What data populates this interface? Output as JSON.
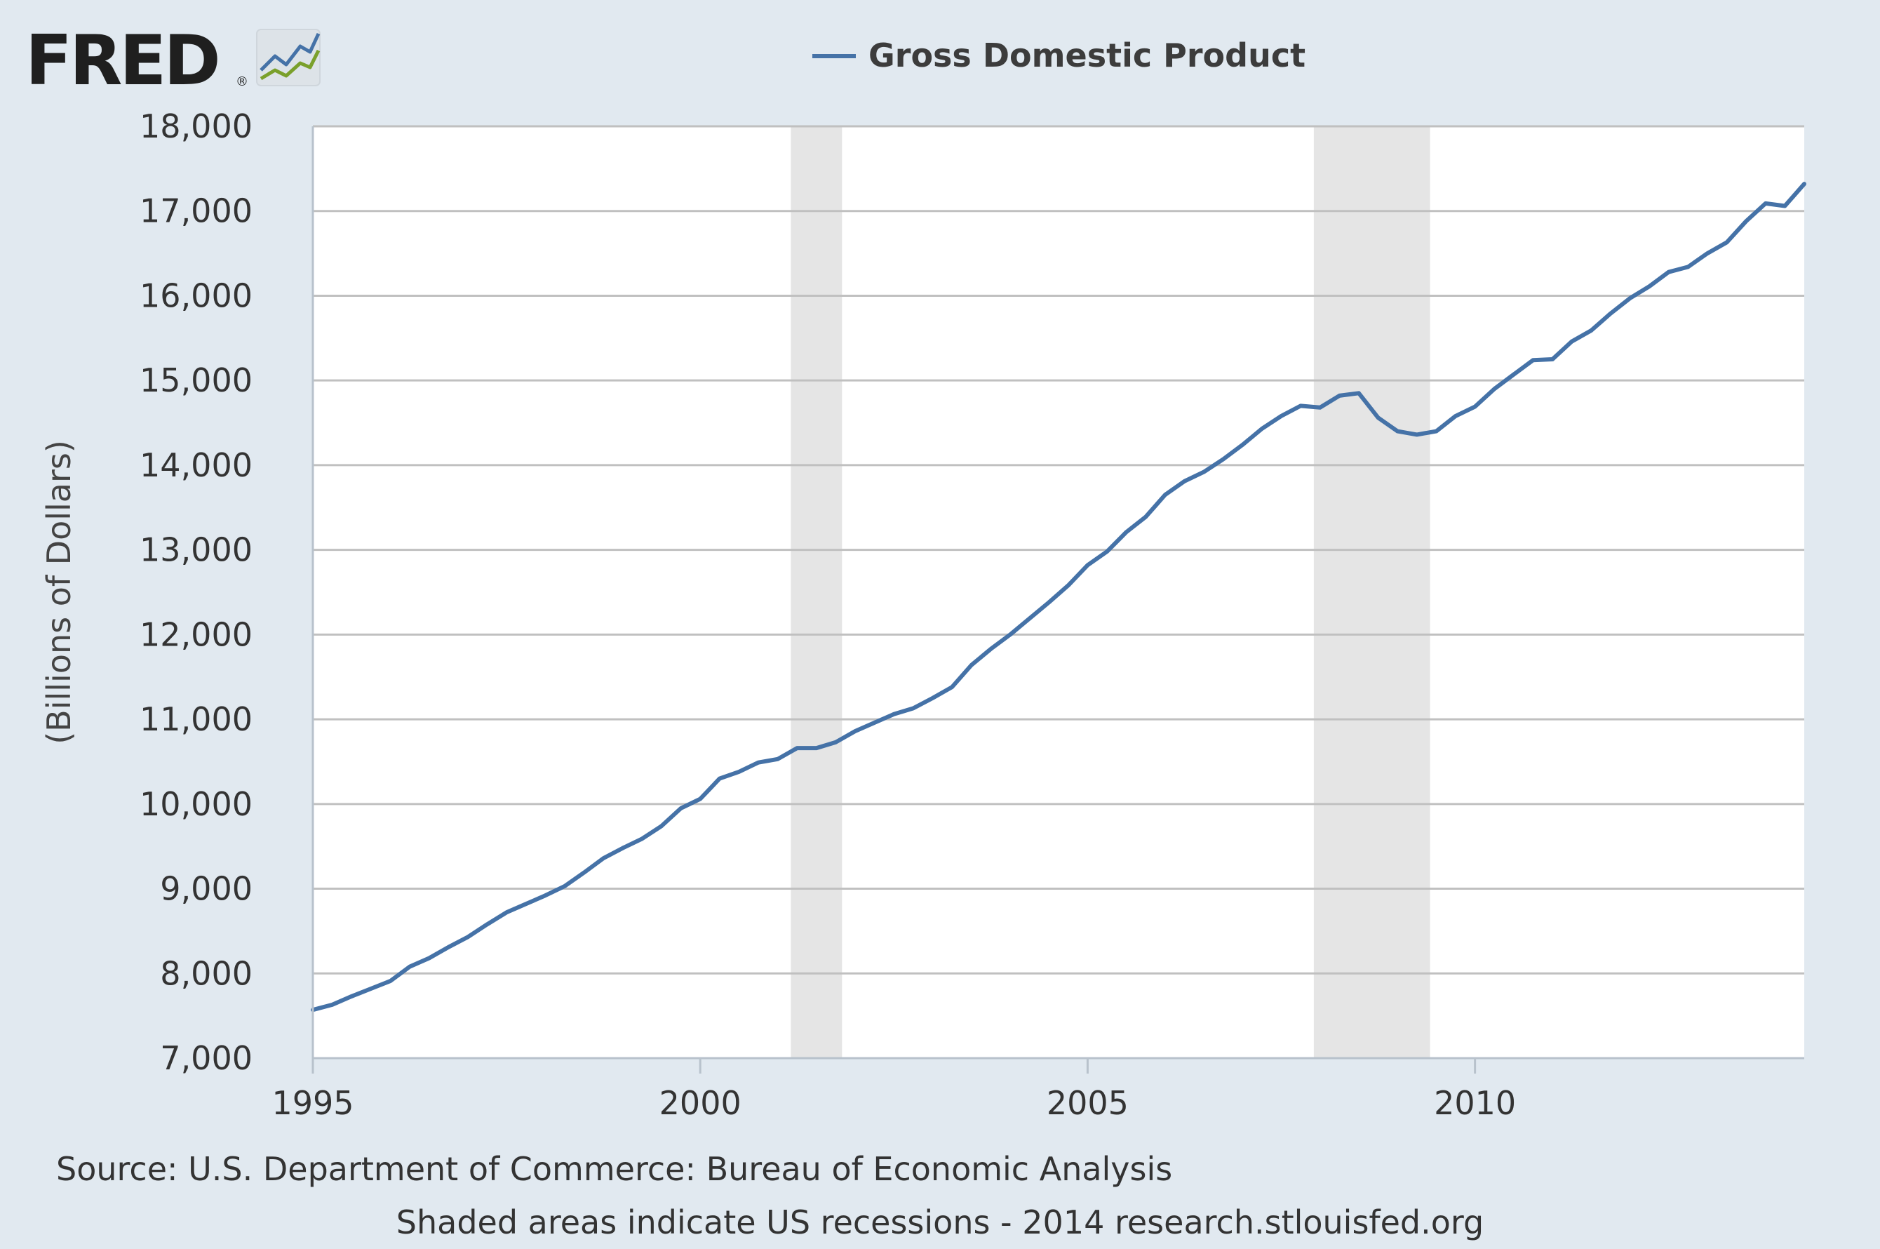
{
  "logo": {
    "text": "FRED",
    "registered": "®"
  },
  "colors": {
    "background": "#e1e9f0",
    "plot_background": "#ffffff",
    "series_line": "#4572a7",
    "recession_band": "#e5e5e5",
    "gridline": "#c0c0c0"
  },
  "footer": {
    "source": "Source: U.S. Department of Commerce: Bureau of Economic Analysis",
    "note": "Shaded areas indicate US recessions - 2014 research.stlouisfed.org"
  },
  "chart_data": {
    "type": "line",
    "title": "",
    "xlabel": "",
    "ylabel": "(Billions of Dollars)",
    "xlim": [
      1995.0,
      2014.25
    ],
    "ylim": [
      7000,
      18000
    ],
    "x_ticks": [
      1995,
      2000,
      2005,
      2010
    ],
    "x_tick_labels": [
      "1995",
      "2000",
      "2005",
      "2010"
    ],
    "y_ticks": [
      7000,
      8000,
      9000,
      10000,
      11000,
      12000,
      13000,
      14000,
      15000,
      16000,
      17000,
      18000
    ],
    "y_tick_labels": [
      "7,000",
      "8,000",
      "9,000",
      "10,000",
      "11,000",
      "12,000",
      "13,000",
      "14,000",
      "15,000",
      "16,000",
      "17,000",
      "18,000"
    ],
    "grid": true,
    "legend": "top-center",
    "recessions": [
      {
        "start": 2001.17,
        "end": 2001.83
      },
      {
        "start": 2007.92,
        "end": 2009.42
      }
    ],
    "series": [
      {
        "name": "Gross Domestic Product",
        "x": [
          1995.0,
          1995.25,
          1995.5,
          1995.75,
          1996.0,
          1996.25,
          1996.5,
          1996.75,
          1997.0,
          1997.25,
          1997.5,
          1997.75,
          1998.0,
          1998.25,
          1998.5,
          1998.75,
          1999.0,
          1999.25,
          1999.5,
          1999.75,
          2000.0,
          2000.25,
          2000.5,
          2000.75,
          2001.0,
          2001.25,
          2001.5,
          2001.75,
          2002.0,
          2002.25,
          2002.5,
          2002.75,
          2003.0,
          2003.25,
          2003.5,
          2003.75,
          2004.0,
          2004.25,
          2004.5,
          2004.75,
          2005.0,
          2005.25,
          2005.5,
          2005.75,
          2006.0,
          2006.25,
          2006.5,
          2006.75,
          2007.0,
          2007.25,
          2007.5,
          2007.75,
          2008.0,
          2008.25,
          2008.5,
          2008.75,
          2009.0,
          2009.25,
          2009.5,
          2009.75,
          2010.0,
          2010.25,
          2010.5,
          2010.75,
          2011.0,
          2011.25,
          2011.5,
          2011.75,
          2012.0,
          2012.25,
          2012.5,
          2012.75,
          2013.0,
          2013.25,
          2013.5,
          2013.75,
          2014.0,
          2014.25
        ],
        "values": [
          7570,
          7630,
          7730,
          7820,
          7910,
          8080,
          8180,
          8310,
          8430,
          8580,
          8720,
          8820,
          8920,
          9030,
          9190,
          9360,
          9480,
          9590,
          9740,
          9950,
          10060,
          10300,
          10380,
          10490,
          10530,
          10660,
          10660,
          10730,
          10860,
          10960,
          11060,
          11130,
          11250,
          11380,
          11640,
          11830,
          12000,
          12190,
          12380,
          12580,
          12820,
          12980,
          13210,
          13390,
          13650,
          13810,
          13920,
          14070,
          14240,
          14430,
          14580,
          14700,
          14680,
          14820,
          14850,
          14560,
          14400,
          14360,
          14400,
          14580,
          14690,
          14900,
          15070,
          15240,
          15250,
          15460,
          15590,
          15790,
          15970,
          16110,
          16280,
          16340,
          16500,
          16630,
          16880,
          17090,
          17060,
          17320
        ]
      }
    ]
  }
}
